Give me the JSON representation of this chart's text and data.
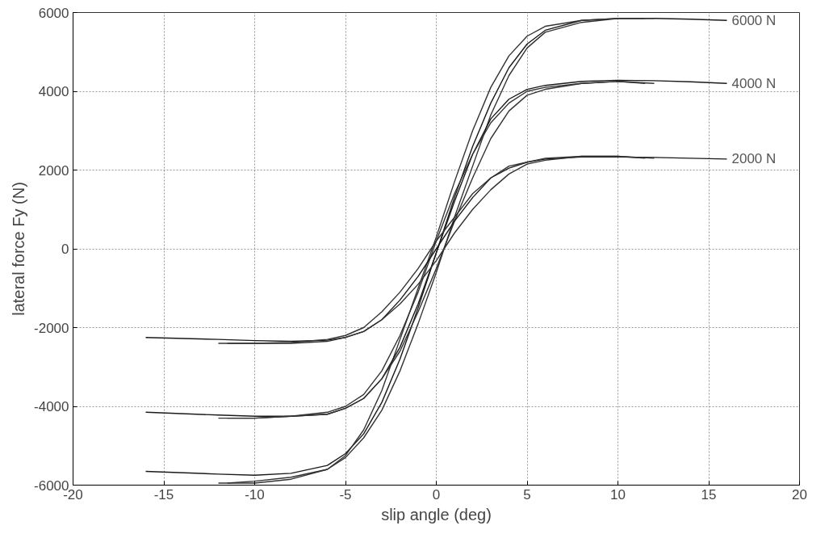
{
  "chart_data": {
    "type": "line",
    "xlabel": "slip angle (deg)",
    "ylabel": "lateral force Fy (N)",
    "xlim": [
      -20,
      20
    ],
    "xticks": [
      -20,
      -15,
      -10,
      -5,
      0,
      5,
      10,
      15,
      20
    ],
    "ylim": [
      -6000,
      6000
    ],
    "yticks": [
      -6000,
      -4000,
      -2000,
      0,
      2000,
      4000,
      6000
    ],
    "grid": true,
    "marker": "none",
    "line_style": "solid",
    "series": [
      {
        "name": "6000 N",
        "color": "#1a1a1a",
        "x": [
          -16,
          -12,
          -10,
          -8,
          -6,
          -5,
          -4,
          -3,
          -2,
          -1,
          0,
          1,
          2,
          3,
          4,
          5,
          6,
          8,
          10,
          12,
          14,
          16
        ],
        "values": [
          -5650,
          -5720,
          -5750,
          -5700,
          -5500,
          -5200,
          -4700,
          -3900,
          -2800,
          -1500,
          -100,
          1300,
          2600,
          3700,
          4600,
          5200,
          5550,
          5800,
          5850,
          5850,
          5830,
          5800
        ]
      },
      {
        "color": "#333333",
        "x": [
          -12,
          -10,
          -8,
          -6,
          -5,
          -4,
          -3,
          -2,
          -1,
          0,
          1,
          2,
          3,
          4,
          5,
          6,
          8,
          10,
          12
        ],
        "values": [
          -5950,
          -5950,
          -5850,
          -5600,
          -5250,
          -4600,
          -3600,
          -2300,
          -1000,
          300,
          1700,
          3000,
          4100,
          4900,
          5400,
          5650,
          5800,
          5850,
          5850
        ]
      },
      {
        "color": "#333333",
        "x": [
          -11.5,
          -10,
          -8,
          -6,
          -5,
          -4,
          -3,
          -2,
          -1,
          0,
          1,
          2,
          3,
          4,
          5,
          6,
          8,
          10,
          11.5
        ],
        "values": [
          -5950,
          -5900,
          -5800,
          -5600,
          -5300,
          -4800,
          -4100,
          -3100,
          -1900,
          -600,
          800,
          2100,
          3400,
          4400,
          5100,
          5500,
          5750,
          5850,
          5850
        ]
      },
      {
        "name": "4000 N",
        "color": "#1a1a1a",
        "x": [
          -16,
          -12,
          -10,
          -8,
          -6,
          -5,
          -4,
          -3,
          -2,
          -1,
          0,
          1,
          2,
          3,
          4,
          5,
          6,
          8,
          10,
          12,
          14,
          16
        ],
        "values": [
          -4150,
          -4220,
          -4250,
          -4250,
          -4200,
          -4050,
          -3800,
          -3300,
          -2500,
          -1400,
          -100,
          1200,
          2400,
          3300,
          3800,
          4050,
          4150,
          4250,
          4280,
          4270,
          4240,
          4200
        ]
      },
      {
        "color": "#333333",
        "x": [
          -12,
          -10,
          -8,
          -6,
          -5,
          -4,
          -3,
          -2,
          -1,
          0,
          1,
          2,
          3,
          4,
          5,
          6,
          8,
          10,
          12
        ],
        "values": [
          -4300,
          -4300,
          -4250,
          -4150,
          -4000,
          -3700,
          -3100,
          -2200,
          -1100,
          200,
          1400,
          2400,
          3200,
          3700,
          4000,
          4100,
          4200,
          4250,
          4200
        ]
      },
      {
        "color": "#333333",
        "x": [
          -11.5,
          -10,
          -8,
          -6,
          -5,
          -4,
          -3,
          -2,
          -1,
          0,
          1,
          2,
          3,
          4,
          5,
          6,
          8,
          10,
          11.5
        ],
        "values": [
          -4300,
          -4300,
          -4250,
          -4200,
          -4050,
          -3800,
          -3300,
          -2600,
          -1600,
          -500,
          700,
          1800,
          2800,
          3500,
          3900,
          4050,
          4200,
          4250,
          4200
        ]
      },
      {
        "name": "2000 N",
        "color": "#1a1a1a",
        "x": [
          -16,
          -12,
          -10,
          -8,
          -6,
          -5,
          -4,
          -3,
          -2,
          -1,
          0,
          1,
          2,
          3,
          4,
          5,
          6,
          8,
          10,
          12,
          14,
          16
        ],
        "values": [
          -2250,
          -2300,
          -2330,
          -2350,
          -2320,
          -2250,
          -2100,
          -1800,
          -1300,
          -700,
          0,
          700,
          1300,
          1800,
          2050,
          2200,
          2280,
          2330,
          2330,
          2320,
          2300,
          2280
        ]
      },
      {
        "color": "#333333",
        "x": [
          -12,
          -10,
          -8,
          -6,
          -5,
          -4,
          -3,
          -2,
          -1,
          0,
          1,
          2,
          3,
          4,
          5,
          6,
          8,
          10,
          12
        ],
        "values": [
          -2400,
          -2400,
          -2380,
          -2300,
          -2200,
          -2000,
          -1600,
          -1100,
          -500,
          200,
          800,
          1400,
          1800,
          2100,
          2200,
          2300,
          2350,
          2350,
          2300
        ]
      },
      {
        "color": "#333333",
        "x": [
          -11.5,
          -10,
          -8,
          -6,
          -5,
          -4,
          -3,
          -2,
          -1,
          0,
          1,
          2,
          3,
          4,
          5,
          6,
          8,
          10,
          11.5
        ],
        "values": [
          -2400,
          -2400,
          -2400,
          -2350,
          -2250,
          -2100,
          -1800,
          -1400,
          -900,
          -300,
          400,
          1000,
          1500,
          1900,
          2150,
          2250,
          2350,
          2350,
          2300
        ]
      }
    ]
  }
}
